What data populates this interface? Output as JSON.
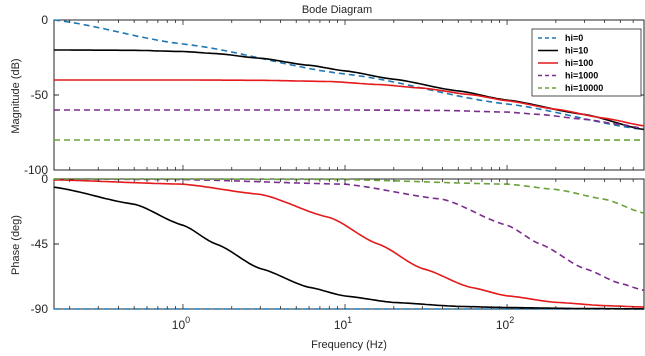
{
  "chart_data": {
    "type": "line",
    "title": "Bode Diagram",
    "xlabel": "Frequency  (Hz)",
    "x_scale": "log",
    "xlim": [
      0.16,
      700
    ],
    "x_ticks": [
      {
        "value": 1,
        "base": "10",
        "exp": "0"
      },
      {
        "value": 10,
        "base": "10",
        "exp": "1"
      },
      {
        "value": 100,
        "base": "10",
        "exp": "2"
      }
    ],
    "grid": false,
    "legend_position": "top-right",
    "panels": [
      {
        "id": "magnitude",
        "ylabel": "Magnitude (dB)",
        "ylim": [
          -100,
          0
        ],
        "y_ticks": [
          0,
          -50,
          -100
        ],
        "y_tick_labels": [
          "0",
          "-50",
          "-100"
        ]
      },
      {
        "id": "phase",
        "ylabel": "Phase (deg)",
        "ylim": [
          -90,
          0
        ],
        "y_ticks": [
          0,
          -45,
          -90
        ],
        "y_tick_labels": [
          "0",
          "-45",
          "-90"
        ]
      }
    ],
    "series": [
      {
        "name": "hi=0",
        "color": "#1f77b4",
        "dash": "dashed",
        "x": [
          0.16,
          1,
          10,
          100,
          700
        ],
        "magnitude": [
          0,
          -16,
          -36,
          -56,
          -73
        ],
        "phase": [
          -90,
          -90,
          -90,
          -90,
          -90
        ]
      },
      {
        "name": "hi=10",
        "color": "#000000",
        "dash": "solid",
        "x": [
          0.16,
          0.5,
          1,
          1.6,
          3,
          6,
          10,
          20,
          50,
          100,
          300,
          700
        ],
        "magnitude": [
          -20,
          -20.2,
          -21,
          -22.4,
          -25.5,
          -30.2,
          -33.9,
          -39.5,
          -47.3,
          -53.4,
          -63,
          -73
        ],
        "phase": [
          -5.7,
          -17.4,
          -32,
          -45,
          -62,
          -75,
          -81,
          -85.5,
          -88.2,
          -89,
          -89.7,
          -89.9
        ]
      },
      {
        "name": "hi=100",
        "color": "#e41a1c",
        "dash": "solid",
        "x": [
          0.16,
          1,
          3,
          8,
          16,
          30,
          60,
          100,
          200,
          400,
          700
        ],
        "magnitude": [
          -40,
          -40,
          -40.2,
          -41,
          -43,
          -45.4,
          -49.8,
          -53.8,
          -59.5,
          -65.5,
          -70.5
        ],
        "phase": [
          -0.6,
          -3.6,
          -10.6,
          -26.6,
          -45,
          -62,
          -75.1,
          -80.9,
          -85.4,
          -87.7,
          -88.6
        ]
      },
      {
        "name": "hi=1000",
        "color": "#7b2d8e",
        "dash": "dashed",
        "x": [
          0.16,
          1,
          10,
          40,
          100,
          160,
          300,
          500,
          700
        ],
        "magnitude": [
          -60,
          -60,
          -60,
          -60.3,
          -61.4,
          -63,
          -66.2,
          -69.6,
          -72.3
        ],
        "phase": [
          0,
          -0.4,
          -3.6,
          -14,
          -32,
          -45,
          -62,
          -72.3,
          -77.1
        ]
      },
      {
        "name": "hi=10000",
        "color": "#6aa23a",
        "dash": "dashed",
        "x": [
          0.16,
          1,
          10,
          100,
          200,
          400,
          700
        ],
        "magnitude": [
          -80,
          -80,
          -80,
          -80,
          -80,
          -80.1,
          -80.1
        ],
        "phase": [
          0,
          0,
          -0.4,
          -3.6,
          -7.2,
          -14,
          -23.6
        ]
      }
    ]
  }
}
